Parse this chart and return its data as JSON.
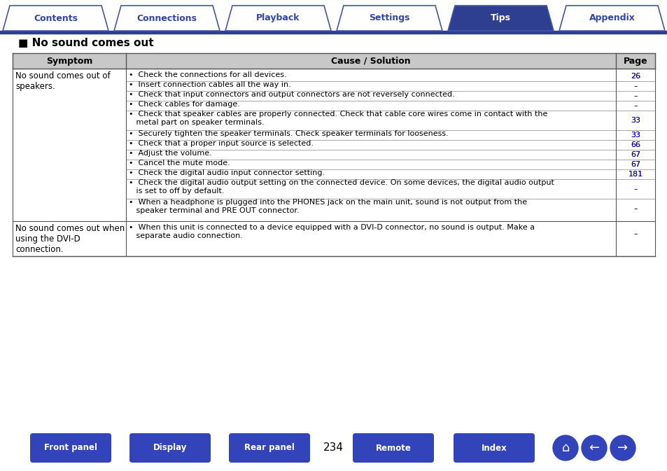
{
  "title": "No sound comes out",
  "nav_tabs": [
    "Contents",
    "Connections",
    "Playback",
    "Settings",
    "Tips",
    "Appendix"
  ],
  "active_tab": "Tips",
  "tab_color_active": "#2e3f8f",
  "tab_color_inactive": "#ffffff",
  "tab_border_color": "#4455aa",
  "tab_text_color_active": "#ffffff",
  "tab_text_color_inactive": "#3344aa",
  "header_bg": "#c8c8c8",
  "header_text": [
    "Symptom",
    "Cause / Solution",
    "Page"
  ],
  "table_border": "#555555",
  "rows": [
    {
      "symptom": "No sound comes out of\nspeakers.",
      "causes": [
        {
          "text": "•  Check the connections for all devices.",
          "page": "26",
          "page_link": true
        },
        {
          "text": "•  Insert connection cables all the way in.",
          "page": "–",
          "page_link": false
        },
        {
          "text": "•  Check that input connectors and output connectors are not reversely connected.",
          "page": "–",
          "page_link": false
        },
        {
          "text": "•  Check cables for damage.",
          "page": "–",
          "page_link": false
        },
        {
          "text": "•  Check that speaker cables are properly connected. Check that cable core wires come in contact with the\n   metal part on speaker terminals.",
          "page": "33",
          "page_link": true
        },
        {
          "text": "•  Securely tighten the speaker terminals. Check speaker terminals for looseness.",
          "page": "33",
          "page_link": true
        },
        {
          "text": "•  Check that a proper input source is selected.",
          "page": "66",
          "page_link": true
        },
        {
          "text": "•  Adjust the volume.",
          "page": "67",
          "page_link": true
        },
        {
          "text": "•  Cancel the mute mode.",
          "page": "67",
          "page_link": true
        },
        {
          "text": "•  Check the digital audio input connector setting.",
          "page": "181",
          "page_link": true
        },
        {
          "text": "•  Check the digital audio output setting on the connected device. On some devices, the digital audio output\n   is set to off by default.",
          "page": "–",
          "page_link": false
        },
        {
          "text": "•  When a headphone is plugged into the PHONES jack on the main unit, sound is not output from the\n   speaker terminal and PRE OUT connector.",
          "page": "–",
          "page_link": false
        }
      ]
    },
    {
      "symptom": "No sound comes out when\nusing the DVI-D\nconnection.",
      "causes": [
        {
          "text": "•  When this unit is connected to a device equipped with a DVI-D connector, no sound is output. Make a\n   separate audio connection.",
          "page": "–",
          "page_link": false
        }
      ]
    }
  ],
  "bottom_buttons": [
    "Front panel",
    "Display",
    "Rear panel",
    "Remote",
    "Index"
  ],
  "page_number": "234",
  "button_color": "#3344bb",
  "background_color": "#ffffff"
}
